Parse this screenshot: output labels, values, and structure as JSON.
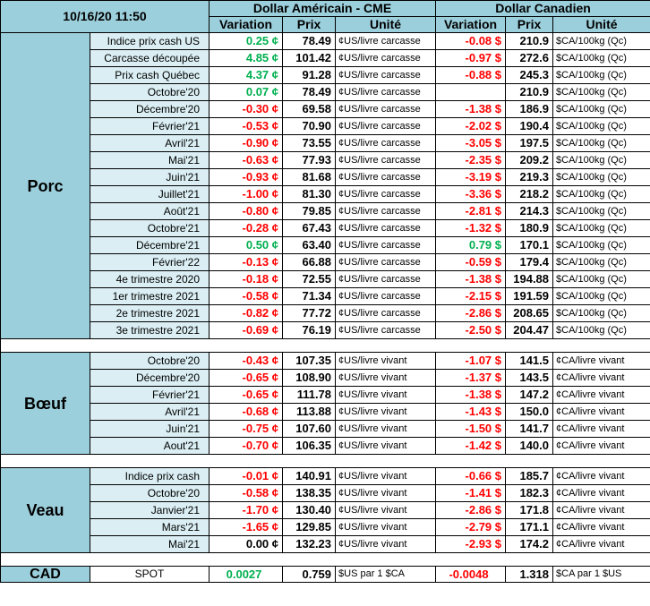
{
  "header": {
    "timestamp": "10/16/20 11:50",
    "usd_group": "Dollar Américain - CME",
    "cad_group": "Dollar Canadien",
    "variation": "Variation",
    "prix": "Prix",
    "unite": "Unité"
  },
  "colors": {
    "header_bg": "#9ccfdc",
    "label_bg": "#daeef3",
    "negative": "#ff0000",
    "positive": "#00b050"
  },
  "sections": [
    {
      "name": "Porc",
      "rows": [
        {
          "label": "Indice prix cash US",
          "usd_var": "0.25 ¢",
          "usd_var_sign": "pos",
          "usd_price": "78.49",
          "usd_unit": "¢US/livre carcasse",
          "cad_var": "-0.08 $",
          "cad_var_sign": "neg",
          "cad_price": "210.9",
          "cad_unit": "$CA/100kg (Qc)"
        },
        {
          "label": "Carcasse découpée",
          "usd_var": "4.85 ¢",
          "usd_var_sign": "pos",
          "usd_price": "101.42",
          "usd_unit": "¢US/livre carcasse",
          "cad_var": "-0.97 $",
          "cad_var_sign": "neg",
          "cad_price": "272.6",
          "cad_unit": "$CA/100kg (Qc)"
        },
        {
          "label": "Prix cash Québec",
          "usd_var": "4.37 ¢",
          "usd_var_sign": "pos",
          "usd_price": "91.28",
          "usd_unit": "¢US/livre carcasse",
          "cad_var": "-0.88 $",
          "cad_var_sign": "neg",
          "cad_price": "245.3",
          "cad_unit": "$CA/100kg (Qc)"
        },
        {
          "label": "Octobre'20",
          "usd_var": "0.07 ¢",
          "usd_var_sign": "pos",
          "usd_price": "78.49",
          "usd_unit": "¢US/livre carcasse",
          "cad_var": "",
          "cad_var_sign": "neg",
          "cad_price": "210.9",
          "cad_unit": "$CA/100kg (Qc)"
        },
        {
          "label": "Décembre'20",
          "usd_var": "-0.30 ¢",
          "usd_var_sign": "neg",
          "usd_price": "69.58",
          "usd_unit": "¢US/livre carcasse",
          "cad_var": "-1.38 $",
          "cad_var_sign": "neg",
          "cad_price": "186.9",
          "cad_unit": "$CA/100kg (Qc)"
        },
        {
          "label": "Février'21",
          "usd_var": "-0.53 ¢",
          "usd_var_sign": "neg",
          "usd_price": "70.90",
          "usd_unit": "¢US/livre carcasse",
          "cad_var": "-2.02 $",
          "cad_var_sign": "neg",
          "cad_price": "190.4",
          "cad_unit": "$CA/100kg (Qc)"
        },
        {
          "label": "Avril'21",
          "usd_var": "-0.90 ¢",
          "usd_var_sign": "neg",
          "usd_price": "73.55",
          "usd_unit": "¢US/livre carcasse",
          "cad_var": "-3.05 $",
          "cad_var_sign": "neg",
          "cad_price": "197.5",
          "cad_unit": "$CA/100kg (Qc)"
        },
        {
          "label": "Mai'21",
          "usd_var": "-0.63 ¢",
          "usd_var_sign": "neg",
          "usd_price": "77.93",
          "usd_unit": "¢US/livre carcasse",
          "cad_var": "-2.35 $",
          "cad_var_sign": "neg",
          "cad_price": "209.2",
          "cad_unit": "$CA/100kg (Qc)"
        },
        {
          "label": "Juin'21",
          "usd_var": "-0.93 ¢",
          "usd_var_sign": "neg",
          "usd_price": "81.68",
          "usd_unit": "¢US/livre carcasse",
          "cad_var": "-3.19 $",
          "cad_var_sign": "neg",
          "cad_price": "219.3",
          "cad_unit": "$CA/100kg (Qc)"
        },
        {
          "label": "Juillet'21",
          "usd_var": "-1.00 ¢",
          "usd_var_sign": "neg",
          "usd_price": "81.30",
          "usd_unit": "¢US/livre carcasse",
          "cad_var": "-3.36 $",
          "cad_var_sign": "neg",
          "cad_price": "218.2",
          "cad_unit": "$CA/100kg (Qc)"
        },
        {
          "label": "Août'21",
          "usd_var": "-0.80 ¢",
          "usd_var_sign": "neg",
          "usd_price": "79.85",
          "usd_unit": "¢US/livre carcasse",
          "cad_var": "-2.81 $",
          "cad_var_sign": "neg",
          "cad_price": "214.3",
          "cad_unit": "$CA/100kg (Qc)"
        },
        {
          "label": "Octobre'21",
          "usd_var": "-0.28 ¢",
          "usd_var_sign": "neg",
          "usd_price": "67.43",
          "usd_unit": "¢US/livre carcasse",
          "cad_var": "-1.32 $",
          "cad_var_sign": "neg",
          "cad_price": "180.9",
          "cad_unit": "$CA/100kg (Qc)"
        },
        {
          "label": "Décembre'21",
          "usd_var": "0.50 ¢",
          "usd_var_sign": "pos",
          "usd_price": "63.40",
          "usd_unit": "¢US/livre carcasse",
          "cad_var": "0.79 $",
          "cad_var_sign": "pos",
          "cad_price": "170.1",
          "cad_unit": "$CA/100kg (Qc)"
        },
        {
          "label": "Février'22",
          "usd_var": "-0.13 ¢",
          "usd_var_sign": "neg",
          "usd_price": "66.88",
          "usd_unit": "¢US/livre carcasse",
          "cad_var": "-0.59 $",
          "cad_var_sign": "neg",
          "cad_price": "179.4",
          "cad_unit": "$CA/100kg (Qc)"
        },
        {
          "label": "4e trimestre 2020",
          "usd_var": "-0.18 ¢",
          "usd_var_sign": "neg",
          "usd_price": "72.55",
          "usd_unit": "¢US/livre carcasse",
          "cad_var": "-1.38 $",
          "cad_var_sign": "neg",
          "cad_price": "194.88",
          "cad_unit": "$CA/100kg (Qc)"
        },
        {
          "label": "1er trimestre 2021",
          "usd_var": "-0.58 ¢",
          "usd_var_sign": "neg",
          "usd_price": "71.34",
          "usd_unit": "¢US/livre carcasse",
          "cad_var": "-2.15 $",
          "cad_var_sign": "neg",
          "cad_price": "191.59",
          "cad_unit": "$CA/100kg (Qc)"
        },
        {
          "label": "2e trimestre 2021",
          "usd_var": "-0.82 ¢",
          "usd_var_sign": "neg",
          "usd_price": "77.72",
          "usd_unit": "¢US/livre carcasse",
          "cad_var": "-2.86 $",
          "cad_var_sign": "neg",
          "cad_price": "208.65",
          "cad_unit": "$CA/100kg (Qc)"
        },
        {
          "label": "3e trimestre 2021",
          "usd_var": "-0.69 ¢",
          "usd_var_sign": "neg",
          "usd_price": "76.19",
          "usd_unit": "¢US/livre carcasse",
          "cad_var": "-2.50 $",
          "cad_var_sign": "neg",
          "cad_price": "204.47",
          "cad_unit": "$CA/100kg (Qc)"
        }
      ]
    },
    {
      "name": "Bœuf",
      "rows": [
        {
          "label": "Octobre'20",
          "usd_var": "-0.43 ¢",
          "usd_var_sign": "neg",
          "usd_price": "107.35",
          "usd_unit": "¢US/livre vivant",
          "cad_var": "-1.07 $",
          "cad_var_sign": "neg",
          "cad_price": "141.5",
          "cad_unit": "¢CA/livre vivant"
        },
        {
          "label": "Décembre'20",
          "usd_var": "-0.65 ¢",
          "usd_var_sign": "neg",
          "usd_price": "108.90",
          "usd_unit": "¢US/livre vivant",
          "cad_var": "-1.37 $",
          "cad_var_sign": "neg",
          "cad_price": "143.5",
          "cad_unit": "¢CA/livre vivant"
        },
        {
          "label": "Février'21",
          "usd_var": "-0.65 ¢",
          "usd_var_sign": "neg",
          "usd_price": "111.78",
          "usd_unit": "¢US/livre vivant",
          "cad_var": "-1.38 $",
          "cad_var_sign": "neg",
          "cad_price": "147.2",
          "cad_unit": "¢CA/livre vivant"
        },
        {
          "label": "Avril'21",
          "usd_var": "-0.68 ¢",
          "usd_var_sign": "neg",
          "usd_price": "113.88",
          "usd_unit": "¢US/livre vivant",
          "cad_var": "-1.43 $",
          "cad_var_sign": "neg",
          "cad_price": "150.0",
          "cad_unit": "¢CA/livre vivant"
        },
        {
          "label": "Juin'21",
          "usd_var": "-0.75 ¢",
          "usd_var_sign": "neg",
          "usd_price": "107.60",
          "usd_unit": "¢US/livre vivant",
          "cad_var": "-1.50 $",
          "cad_var_sign": "neg",
          "cad_price": "141.7",
          "cad_unit": "¢CA/livre vivant"
        },
        {
          "label": "Aout'21",
          "usd_var": "-0.70 ¢",
          "usd_var_sign": "neg",
          "usd_price": "106.35",
          "usd_unit": "¢US/livre vivant",
          "cad_var": "-1.42 $",
          "cad_var_sign": "neg",
          "cad_price": "140.0",
          "cad_unit": "¢CA/livre vivant"
        }
      ]
    },
    {
      "name": "Veau",
      "rows": [
        {
          "label": "Indice prix cash",
          "usd_var": "-0.01 ¢",
          "usd_var_sign": "neg",
          "usd_price": "140.91",
          "usd_unit": "¢US/livre vivant",
          "cad_var": "-0.66 $",
          "cad_var_sign": "neg",
          "cad_price": "185.7",
          "cad_unit": "¢CA/livre vivant"
        },
        {
          "label": "Octobre'20",
          "usd_var": "-0.58 ¢",
          "usd_var_sign": "neg",
          "usd_price": "138.35",
          "usd_unit": "¢US/livre vivant",
          "cad_var": "-1.41 $",
          "cad_var_sign": "neg",
          "cad_price": "182.3",
          "cad_unit": "¢CA/livre vivant"
        },
        {
          "label": "Janvier'21",
          "usd_var": "-1.70 ¢",
          "usd_var_sign": "neg",
          "usd_price": "130.40",
          "usd_unit": "¢US/livre vivant",
          "cad_var": "-2.86 $",
          "cad_var_sign": "neg",
          "cad_price": "171.8",
          "cad_unit": "¢CA/livre vivant"
        },
        {
          "label": "Mars'21",
          "usd_var": "-1.65 ¢",
          "usd_var_sign": "neg",
          "usd_price": "129.85",
          "usd_unit": "¢US/livre vivant",
          "cad_var": "-2.79 $",
          "cad_var_sign": "neg",
          "cad_price": "171.1",
          "cad_unit": "¢CA/livre vivant"
        },
        {
          "label": "Mai'21",
          "usd_var": "0.00 ¢",
          "usd_var_sign": "zero",
          "usd_price": "132.23",
          "usd_unit": "¢US/livre vivant",
          "cad_var": "-2.93 $",
          "cad_var_sign": "neg",
          "cad_price": "174.2",
          "cad_unit": "¢CA/livre vivant"
        }
      ]
    }
  ],
  "cad": {
    "name": "CAD",
    "label": "SPOT",
    "usd_var": "0.0027",
    "usd_price": "0.759",
    "usd_unit": "$US par 1 $CA",
    "cad_var": "-0.0048",
    "cad_price": "1.318",
    "cad_unit": "$CA par 1 $US"
  }
}
